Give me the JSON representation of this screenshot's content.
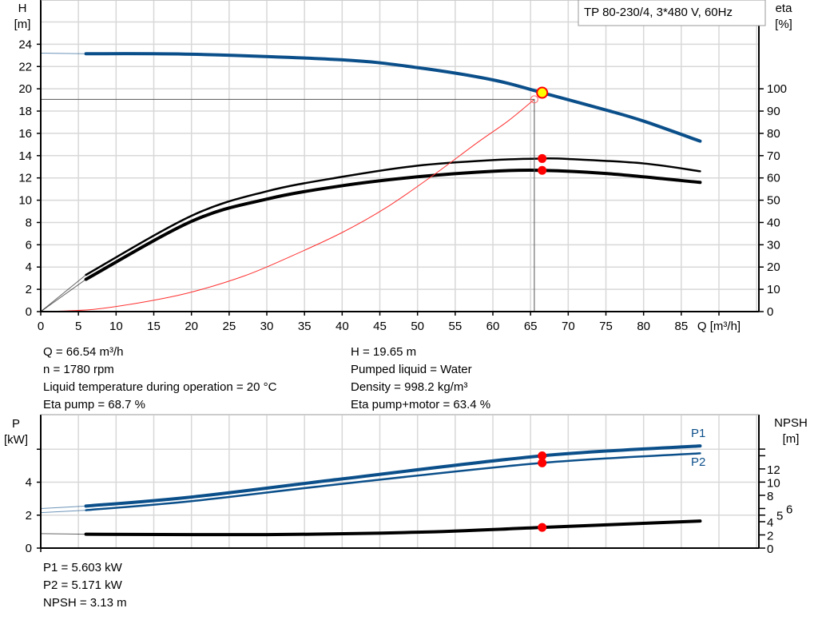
{
  "chart_data": [
    {
      "type": "line",
      "title_box": "TP 80-230/4, 3*480 V, 60Hz",
      "xlabel": "Q [m³/h]",
      "ylabel": "H\n[m]",
      "y2label": "eta\n[%]",
      "xlim": [
        0,
        95.3
      ],
      "ylim": [
        0,
        27.9
      ],
      "y2lim": [
        0,
        139.5
      ],
      "xticks": [
        0,
        5,
        10,
        15,
        20,
        25,
        30,
        35,
        40,
        45,
        50,
        55,
        60,
        65,
        70,
        75,
        80,
        85
      ],
      "yticks": [
        0,
        2,
        4,
        6,
        8,
        10,
        12,
        14,
        16,
        18,
        20,
        22,
        24
      ],
      "y2ticks": [
        0,
        10,
        20,
        30,
        40,
        50,
        60,
        70,
        80,
        90,
        100
      ],
      "grid": true,
      "series": [
        {
          "id": "head",
          "axis": "H",
          "color": "#0b4f8a",
          "x": [
            0,
            6,
            20,
            40,
            50,
            60,
            66.54,
            75,
            80,
            87.5
          ],
          "y": [
            23.2,
            23.15,
            23.1,
            22.6,
            21.9,
            20.8,
            19.65,
            18.1,
            17.1,
            15.3
          ]
        },
        {
          "id": "eta_pump",
          "axis": "eta",
          "color": "#000000",
          "x": [
            0,
            6,
            20,
            30,
            40,
            50,
            60,
            66.54,
            70,
            80,
            87.5
          ],
          "y": [
            0,
            16.5,
            43,
            54,
            60.5,
            65.5,
            68,
            68.7,
            68.5,
            66.5,
            63
          ]
        },
        {
          "id": "eta_pump_motor",
          "axis": "eta",
          "color": "#000000",
          "x": [
            0,
            6,
            20,
            30,
            40,
            50,
            60,
            66.54,
            75,
            87.5
          ],
          "y": [
            0,
            14.5,
            40.5,
            50.5,
            56.5,
            60.5,
            63,
            63.4,
            62,
            58
          ]
        },
        {
          "id": "system_curve",
          "axis": "H",
          "color": "#ff3030",
          "x": [
            0,
            7,
            14,
            20,
            27,
            33,
            40,
            46,
            52,
            58,
            62,
            65.5
          ],
          "y": [
            0,
            0.2,
            0.9,
            1.75,
            3.2,
            4.9,
            7.1,
            9.4,
            12.2,
            15.2,
            17.1,
            19.05
          ]
        }
      ],
      "duty_point": {
        "Q": 66.54,
        "H": 19.65,
        "eta_pump": 68.7,
        "eta_pump_motor": 63.4
      },
      "system_point": {
        "Q": 65.5,
        "H": 19.05
      }
    },
    {
      "type": "line",
      "ylabel": "P\n[kW]",
      "y2label": "NPSH\n[m]",
      "xlim": [
        0,
        95.3
      ],
      "ylim": [
        0,
        8.05
      ],
      "y2lim": [
        0,
        20.1
      ],
      "yticks": [
        0,
        2,
        4
      ],
      "yticks_unlabeled": [
        6
      ],
      "y2ticks": [
        0,
        2,
        4,
        5,
        6,
        8,
        10,
        12
      ],
      "y2ticks_unlabeled": [
        14,
        15
      ],
      "grid": true,
      "series": [
        {
          "id": "P1",
          "name": "P1",
          "axis": "P",
          "color": "#0b4f8a",
          "x": [
            0,
            6,
            20,
            40,
            66.54,
            87.5
          ],
          "y": [
            2.4,
            2.55,
            3.1,
            4.2,
            5.603,
            6.2
          ]
        },
        {
          "id": "P2",
          "name": "P2",
          "axis": "P",
          "color": "#0b4f8a",
          "x": [
            0,
            6,
            20,
            40,
            66.54,
            87.5
          ],
          "y": [
            2.15,
            2.3,
            2.85,
            3.9,
            5.171,
            5.75
          ]
        },
        {
          "id": "NPSH",
          "axis": "NPSH",
          "color": "#000000",
          "x": [
            0,
            6,
            30,
            50,
            66.54,
            87.5
          ],
          "y": [
            2.2,
            2.1,
            2.05,
            2.4,
            3.13,
            4.1
          ]
        }
      ],
      "duty_point": {
        "Q": 66.54,
        "P1": 5.603,
        "P2": 5.171,
        "NPSH": 3.13
      }
    }
  ],
  "info_left": [
    "Q = 66.54 m³/h",
    "n = 1780 rpm",
    "Liquid temperature during operation = 20 °C",
    "Eta pump = 68.7 %"
  ],
  "info_right": [
    "H = 19.65 m",
    "Pumped liquid = Water",
    "Density = 998.2 kg/m³",
    "Eta pump+motor = 63.4 %"
  ],
  "info_bottom": [
    "P1 = 5.603 kW",
    "P2 = 5.171 kW",
    "NPSH = 3.13 m"
  ],
  "colors": {
    "marker": "#ff0000",
    "duty_fill": "#ffff00",
    "grid": "#d8d8d8"
  }
}
